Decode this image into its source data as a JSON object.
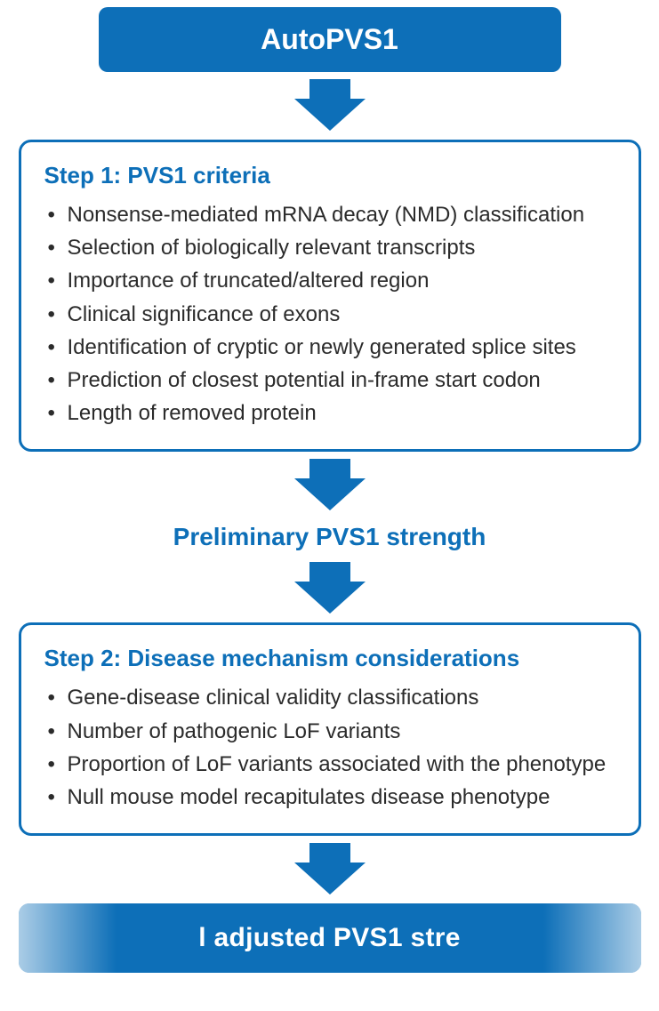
{
  "colors": {
    "primary": "#0d6fb8",
    "text": "#2b2b2b",
    "bg": "#ffffff"
  },
  "title": "AutoPVS1",
  "step1": {
    "heading": "Step 1: PVS1 criteria",
    "items": [
      "Nonsense-mediated mRNA decay (NMD) classification",
      "Selection of biologically relevant transcripts",
      "Importance of truncated/altered region",
      "Clinical significance of exons",
      "Identification of cryptic or newly generated splice sites",
      "Prediction of closest potential in-frame start codon",
      "Length of removed protein"
    ]
  },
  "midLabel": "Preliminary PVS1 strength",
  "step2": {
    "heading": "Step 2: Disease mechanism considerations",
    "items": [
      "Gene-disease clinical validity classifications",
      "Number of pathogenic LoF variants",
      "Proportion of LoF variants associated with the phenotype",
      "Null mouse model recapitulates disease phenotype"
    ]
  },
  "final": "l adjusted PVS1 stre"
}
